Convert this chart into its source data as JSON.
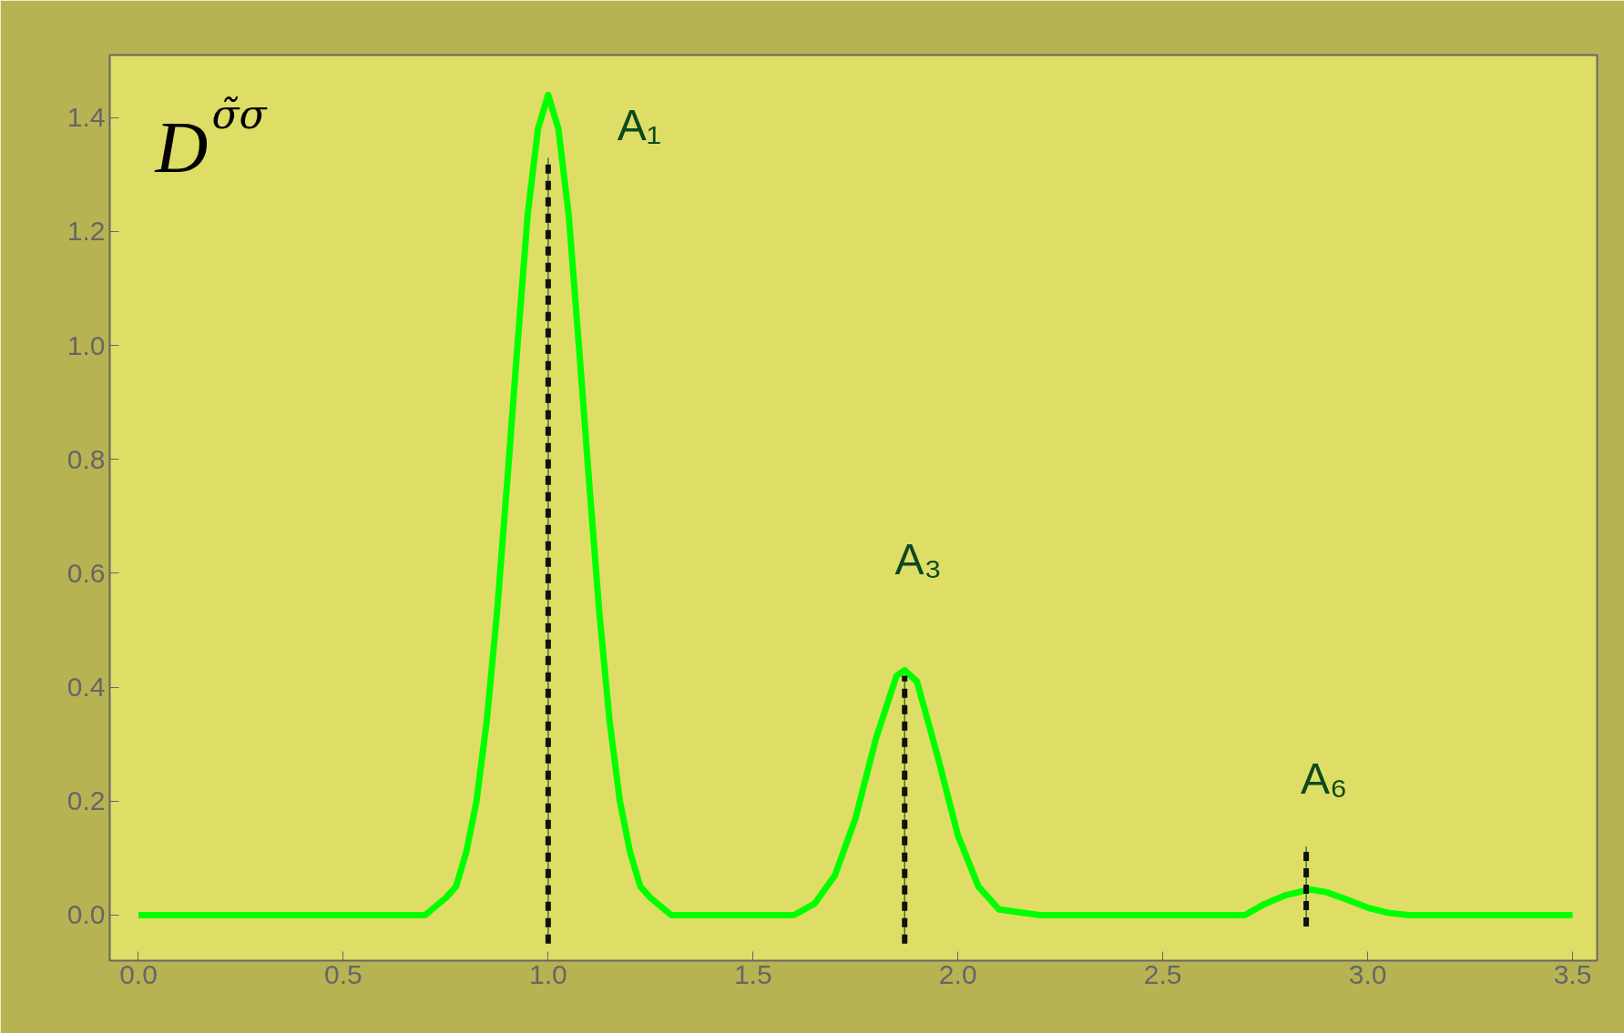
{
  "chart_data": {
    "type": "line",
    "xlim": [
      -0.07,
      3.56
    ],
    "ylim": [
      -0.08,
      1.51
    ],
    "xticks": [
      {
        "value": 0,
        "label": "0.0"
      },
      {
        "value": 0.5,
        "label": "0.5"
      },
      {
        "value": 1,
        "label": "1.0"
      },
      {
        "value": 1.5,
        "label": "1.5"
      },
      {
        "value": 2,
        "label": "2.0"
      },
      {
        "value": 2.5,
        "label": "2.5"
      },
      {
        "value": 3,
        "label": "3.0"
      },
      {
        "value": 3.5,
        "label": "3.5"
      }
    ],
    "yticks": [
      {
        "value": 0,
        "label": "0.0"
      },
      {
        "value": 0.2,
        "label": "0.2"
      },
      {
        "value": 0.4,
        "label": "0.4"
      },
      {
        "value": 0.6,
        "label": "0.6"
      },
      {
        "value": 0.8,
        "label": "0.8"
      },
      {
        "value": 1,
        "label": "1.0"
      },
      {
        "value": 1.2,
        "label": "1.2"
      },
      {
        "value": 1.4,
        "label": "1.4"
      }
    ],
    "series": [
      {
        "color": "#00ff00",
        "line_style": "solid",
        "x": [
          0,
          0.5,
          0.6,
          0.7,
          0.75,
          0.775,
          0.8,
          0.825,
          0.85,
          0.875,
          0.9,
          0.925,
          0.95,
          0.975,
          1.0,
          1.025,
          1.05,
          1.075,
          1.1,
          1.125,
          1.15,
          1.175,
          1.2,
          1.225,
          1.25,
          1.3,
          1.4,
          1.5,
          1.6,
          1.65,
          1.7,
          1.75,
          1.8,
          1.85,
          1.87,
          1.9,
          1.95,
          2.0,
          2.05,
          2.1,
          2.2,
          2.5,
          2.7,
          2.75,
          2.8,
          2.86,
          2.9,
          2.95,
          3.0,
          3.05,
          3.1,
          3.3,
          3.5
        ],
        "values": [
          0,
          0,
          0,
          0,
          0.03,
          0.05,
          0.11,
          0.2,
          0.34,
          0.53,
          0.76,
          1.0,
          1.23,
          1.38,
          1.44,
          1.38,
          1.23,
          1.0,
          0.76,
          0.53,
          0.34,
          0.2,
          0.11,
          0.05,
          0.03,
          0,
          0,
          0,
          0,
          0.02,
          0.07,
          0.17,
          0.31,
          0.42,
          0.43,
          0.41,
          0.28,
          0.14,
          0.05,
          0.01,
          0,
          0,
          0,
          0.02,
          0.035,
          0.045,
          0.04,
          0.027,
          0.013,
          0.004,
          0,
          0,
          0
        ]
      },
      {
        "color": "#111111",
        "line_style": "dashed",
        "x": [
          1.0,
          1.0
        ],
        "values": [
          -0.05,
          1.33
        ]
      },
      {
        "color": "#111111",
        "line_style": "dashed",
        "x": [
          1.87,
          1.87
        ],
        "values": [
          -0.05,
          0.42
        ]
      },
      {
        "color": "#111111",
        "line_style": "dashed",
        "x": [
          2.85,
          2.85
        ],
        "values": [
          -0.02,
          0.12
        ]
      }
    ],
    "annotations": [
      "D$^{σ̃σ}$",
      {
        "text": "A₁",
        "x": 1.0,
        "y": 1.44
      },
      {
        "text": "A₃",
        "x": 1.87,
        "y": 0.43
      },
      {
        "text": "A₆",
        "x": 2.86,
        "y": 0.045
      }
    ]
  }
}
